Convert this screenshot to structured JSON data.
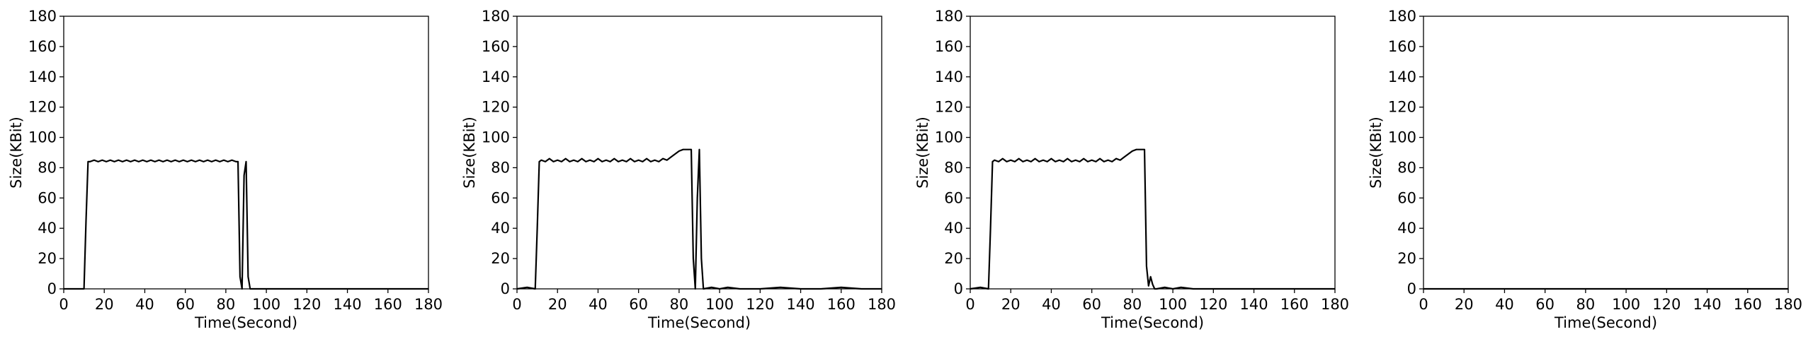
{
  "chart_data": [
    {
      "type": "line",
      "title": "",
      "xlabel": "Time(Second)",
      "ylabel": "Size(KBit)",
      "xlim": [
        0,
        180
      ],
      "ylim": [
        0,
        180
      ],
      "xticks": [
        0,
        20,
        40,
        60,
        80,
        100,
        120,
        140,
        160,
        180
      ],
      "yticks": [
        0,
        20,
        40,
        60,
        80,
        100,
        120,
        140,
        160,
        180
      ],
      "grid": false,
      "line_color": "#000000",
      "series": [
        {
          "x": [
            0,
            9,
            10,
            11,
            12,
            13,
            15,
            17,
            19,
            21,
            23,
            25,
            27,
            29,
            31,
            33,
            35,
            37,
            39,
            41,
            43,
            45,
            47,
            49,
            51,
            53,
            55,
            57,
            59,
            61,
            63,
            65,
            67,
            69,
            71,
            73,
            75,
            77,
            79,
            81,
            83,
            85,
            86,
            87,
            88,
            89,
            90,
            91,
            92,
            100,
            120,
            140,
            160,
            180
          ],
          "y": [
            0,
            0,
            0,
            45,
            84,
            84,
            85,
            84,
            85,
            84,
            85,
            84,
            85,
            84,
            85,
            84,
            85,
            84,
            85,
            84,
            85,
            84,
            85,
            84,
            85,
            84,
            85,
            84,
            85,
            84,
            85,
            84,
            85,
            84,
            85,
            84,
            85,
            84,
            85,
            84,
            85,
            84,
            84,
            8,
            0,
            75,
            84,
            8,
            0,
            0,
            0,
            0,
            0,
            0
          ]
        }
      ]
    },
    {
      "type": "line",
      "title": "",
      "xlabel": "Time(Second)",
      "ylabel": "Size(KBit)",
      "xlim": [
        0,
        180
      ],
      "ylim": [
        0,
        180
      ],
      "xticks": [
        0,
        20,
        40,
        60,
        80,
        100,
        120,
        140,
        160,
        180
      ],
      "yticks": [
        0,
        20,
        40,
        60,
        80,
        100,
        120,
        140,
        160,
        180
      ],
      "grid": false,
      "line_color": "#000000",
      "series": [
        {
          "x": [
            0,
            5,
            9,
            10,
            11,
            12,
            14,
            16,
            18,
            20,
            22,
            24,
            26,
            28,
            30,
            32,
            34,
            36,
            38,
            40,
            42,
            44,
            46,
            48,
            50,
            52,
            54,
            56,
            58,
            60,
            62,
            64,
            66,
            68,
            70,
            72,
            74,
            76,
            78,
            80,
            82,
            84,
            86,
            87,
            88,
            89,
            90,
            91,
            92,
            96,
            100,
            104,
            110,
            120,
            130,
            140,
            150,
            160,
            170,
            180
          ],
          "y": [
            0,
            1,
            0,
            40,
            84,
            85,
            84,
            86,
            84,
            85,
            84,
            86,
            84,
            85,
            84,
            86,
            84,
            85,
            84,
            86,
            84,
            85,
            84,
            86,
            84,
            85,
            84,
            86,
            84,
            85,
            84,
            86,
            84,
            85,
            84,
            86,
            85,
            87,
            89,
            91,
            92,
            92,
            92,
            20,
            0,
            60,
            92,
            20,
            0,
            1,
            0,
            1,
            0,
            0,
            1,
            0,
            0,
            1,
            0,
            0
          ]
        }
      ]
    },
    {
      "type": "line",
      "title": "",
      "xlabel": "Time(Second)",
      "ylabel": "Size(KBit)",
      "xlim": [
        0,
        180
      ],
      "ylim": [
        0,
        180
      ],
      "xticks": [
        0,
        20,
        40,
        60,
        80,
        100,
        120,
        140,
        160,
        180
      ],
      "yticks": [
        0,
        20,
        40,
        60,
        80,
        100,
        120,
        140,
        160,
        180
      ],
      "grid": false,
      "line_color": "#000000",
      "series": [
        {
          "x": [
            0,
            5,
            9,
            10,
            11,
            12,
            14,
            16,
            18,
            20,
            22,
            24,
            26,
            28,
            30,
            32,
            34,
            36,
            38,
            40,
            42,
            44,
            46,
            48,
            50,
            52,
            54,
            56,
            58,
            60,
            62,
            64,
            66,
            68,
            70,
            72,
            74,
            76,
            78,
            80,
            82,
            84,
            86,
            87,
            88,
            89,
            90,
            91,
            92,
            96,
            100,
            104,
            110,
            120,
            130,
            140,
            150,
            160,
            170,
            180
          ],
          "y": [
            0,
            1,
            0,
            40,
            84,
            85,
            84,
            86,
            84,
            85,
            84,
            86,
            84,
            85,
            84,
            86,
            84,
            85,
            84,
            86,
            84,
            85,
            84,
            86,
            84,
            85,
            84,
            86,
            84,
            85,
            84,
            86,
            84,
            85,
            84,
            86,
            85,
            87,
            89,
            91,
            92,
            92,
            92,
            15,
            2,
            8,
            3,
            0,
            0,
            1,
            0,
            1,
            0,
            0,
            0,
            0,
            0,
            0,
            0,
            0
          ]
        }
      ]
    },
    {
      "type": "line",
      "title": "",
      "xlabel": "Time(Second)",
      "ylabel": "Size(KBit)",
      "xlim": [
        0,
        180
      ],
      "ylim": [
        0,
        180
      ],
      "xticks": [
        0,
        20,
        40,
        60,
        80,
        100,
        120,
        140,
        160,
        180
      ],
      "yticks": [
        0,
        20,
        40,
        60,
        80,
        100,
        120,
        140,
        160,
        180
      ],
      "grid": false,
      "line_color": "#000000",
      "series": [
        {
          "x": [
            0,
            180
          ],
          "y": [
            0,
            0
          ]
        }
      ]
    }
  ]
}
